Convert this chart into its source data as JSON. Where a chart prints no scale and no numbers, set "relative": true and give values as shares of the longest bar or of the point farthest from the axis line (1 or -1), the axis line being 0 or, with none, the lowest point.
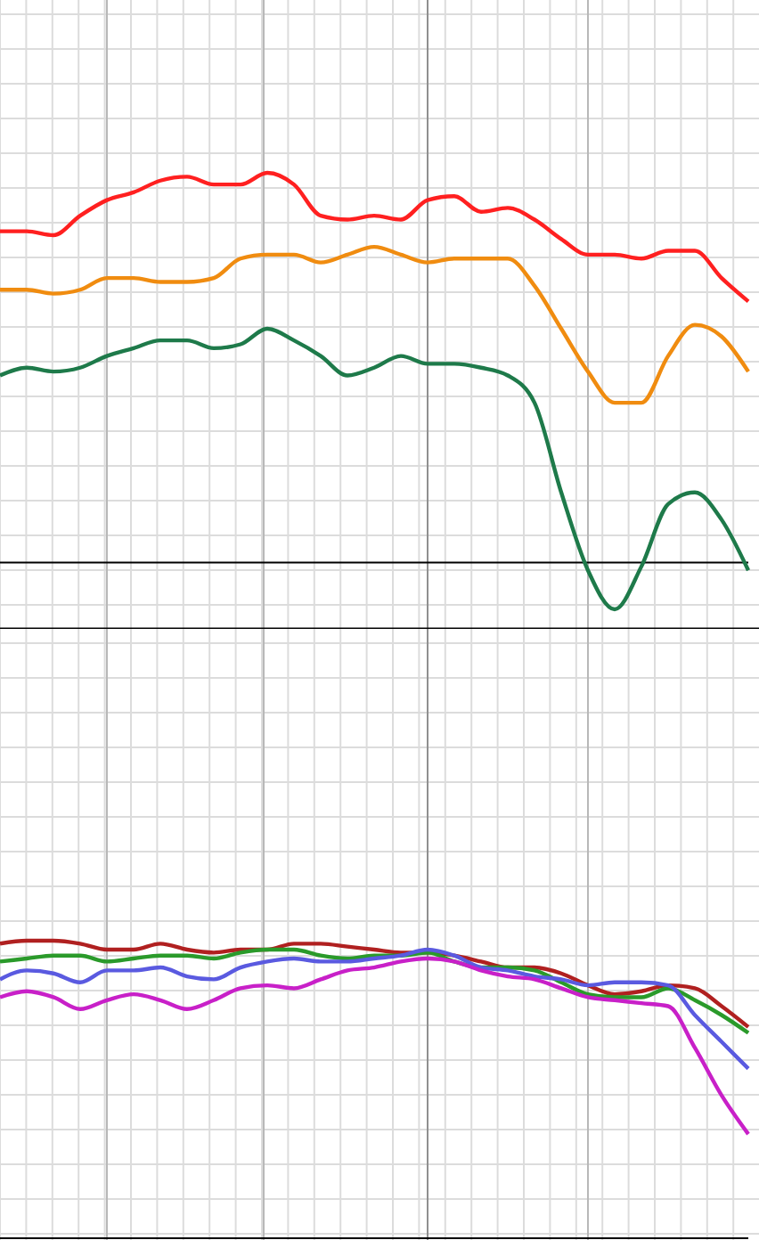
{
  "chart_data": [
    {
      "type": "line",
      "relative": true,
      "grid": true,
      "categories": [
        null,
        null,
        null,
        null,
        null,
        null,
        null,
        null,
        null,
        null,
        null,
        null,
        null,
        null,
        null,
        null,
        null,
        null,
        null,
        null,
        null,
        null,
        null,
        null,
        null,
        null,
        null,
        null,
        null
      ],
      "series": [
        {
          "color": "#ff2020",
          "values": [
            0.85,
            0.85,
            0.84,
            0.89,
            0.93,
            0.95,
            0.98,
            0.99,
            0.97,
            0.97,
            1.0,
            0.97,
            0.89,
            0.88,
            0.89,
            0.88,
            0.93,
            0.94,
            0.9,
            0.91,
            0.88,
            0.83,
            0.79,
            0.79,
            0.78,
            0.8,
            0.8,
            0.73,
            0.67
          ]
        },
        {
          "color": "#f08c10",
          "values": [
            0.7,
            0.7,
            0.69,
            0.7,
            0.73,
            0.73,
            0.72,
            0.72,
            0.73,
            0.78,
            0.79,
            0.79,
            0.77,
            0.79,
            0.81,
            0.79,
            0.77,
            0.78,
            0.78,
            0.78,
            0.71,
            0.6,
            0.49,
            0.41,
            0.41,
            0.53,
            0.61,
            0.58,
            0.49
          ]
        },
        {
          "color": "#1e7a4a",
          "values": [
            0.48,
            0.5,
            0.49,
            0.5,
            0.53,
            0.55,
            0.57,
            0.57,
            0.55,
            0.56,
            0.6,
            0.57,
            0.53,
            0.48,
            0.5,
            0.53,
            0.51,
            0.51,
            0.5,
            0.48,
            0.41,
            0.18,
            -0.02,
            -0.12,
            -0.01,
            0.15,
            0.18,
            0.11,
            -0.02
          ]
        }
      ]
    },
    {
      "type": "line",
      "relative": true,
      "grid": true,
      "categories": [
        null,
        null,
        null,
        null,
        null,
        null,
        null,
        null,
        null,
        null,
        null,
        null,
        null,
        null,
        null,
        null,
        null,
        null,
        null,
        null,
        null,
        null,
        null,
        null,
        null,
        null,
        null,
        null,
        null
      ],
      "series": [
        {
          "color": "#b02020",
          "values": [
            0.99,
            1.0,
            1.0,
            0.99,
            0.97,
            0.97,
            0.99,
            0.97,
            0.96,
            0.97,
            0.97,
            0.99,
            0.99,
            0.98,
            0.97,
            0.96,
            0.96,
            0.95,
            0.93,
            0.91,
            0.91,
            0.89,
            0.85,
            0.82,
            0.83,
            0.85,
            0.84,
            0.78,
            0.71
          ]
        },
        {
          "color": "#2a9a2a",
          "values": [
            0.93,
            0.94,
            0.95,
            0.95,
            0.93,
            0.94,
            0.95,
            0.95,
            0.94,
            0.96,
            0.97,
            0.97,
            0.95,
            0.94,
            0.95,
            0.95,
            0.96,
            0.93,
            0.91,
            0.91,
            0.9,
            0.86,
            0.82,
            0.81,
            0.81,
            0.84,
            0.8,
            0.75,
            0.69
          ]
        },
        {
          "color": "#5a5ae0",
          "values": [
            0.87,
            0.9,
            0.89,
            0.86,
            0.9,
            0.9,
            0.91,
            0.88,
            0.87,
            0.91,
            0.93,
            0.94,
            0.93,
            0.93,
            0.94,
            0.95,
            0.97,
            0.95,
            0.91,
            0.9,
            0.88,
            0.87,
            0.85,
            0.86,
            0.86,
            0.85,
            0.75,
            0.66,
            0.57
          ]
        },
        {
          "color": "#c820c8",
          "values": [
            0.81,
            0.83,
            0.81,
            0.77,
            0.8,
            0.82,
            0.8,
            0.77,
            0.8,
            0.84,
            0.85,
            0.84,
            0.87,
            0.9,
            0.91,
            0.93,
            0.94,
            0.93,
            0.9,
            0.88,
            0.87,
            0.84,
            0.81,
            0.8,
            0.79,
            0.78,
            0.64,
            0.48,
            0.35
          ]
        }
      ]
    }
  ]
}
